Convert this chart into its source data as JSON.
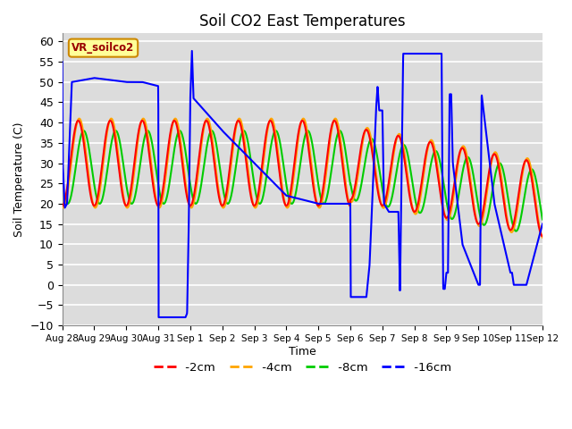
{
  "title": "Soil CO2 East Temperatures",
  "xlabel": "Time",
  "ylabel": "Soil Temperature (C)",
  "ylim": [
    -10,
    62
  ],
  "yticks": [
    -10,
    -5,
    0,
    5,
    10,
    15,
    20,
    25,
    30,
    35,
    40,
    45,
    50,
    55,
    60
  ],
  "xtick_labels": [
    "Aug 28",
    "Aug 29",
    "Aug 30",
    "Aug 31",
    "Sep 1",
    "Sep 2",
    "Sep 3",
    "Sep 4",
    "Sep 5",
    "Sep 6",
    "Sep 7",
    "Sep 8",
    "Sep 9",
    "Sep 10",
    "Sep 11",
    "Sep 12"
  ],
  "colors": {
    "2cm": "#ff0000",
    "4cm": "#ffa500",
    "8cm": "#00cc00",
    "16cm": "#0000ff"
  },
  "bg_color": "#dcdcdc",
  "legend_label": "VR_soilco2",
  "legend_bg": "#ffff99",
  "legend_border": "#cc8800"
}
